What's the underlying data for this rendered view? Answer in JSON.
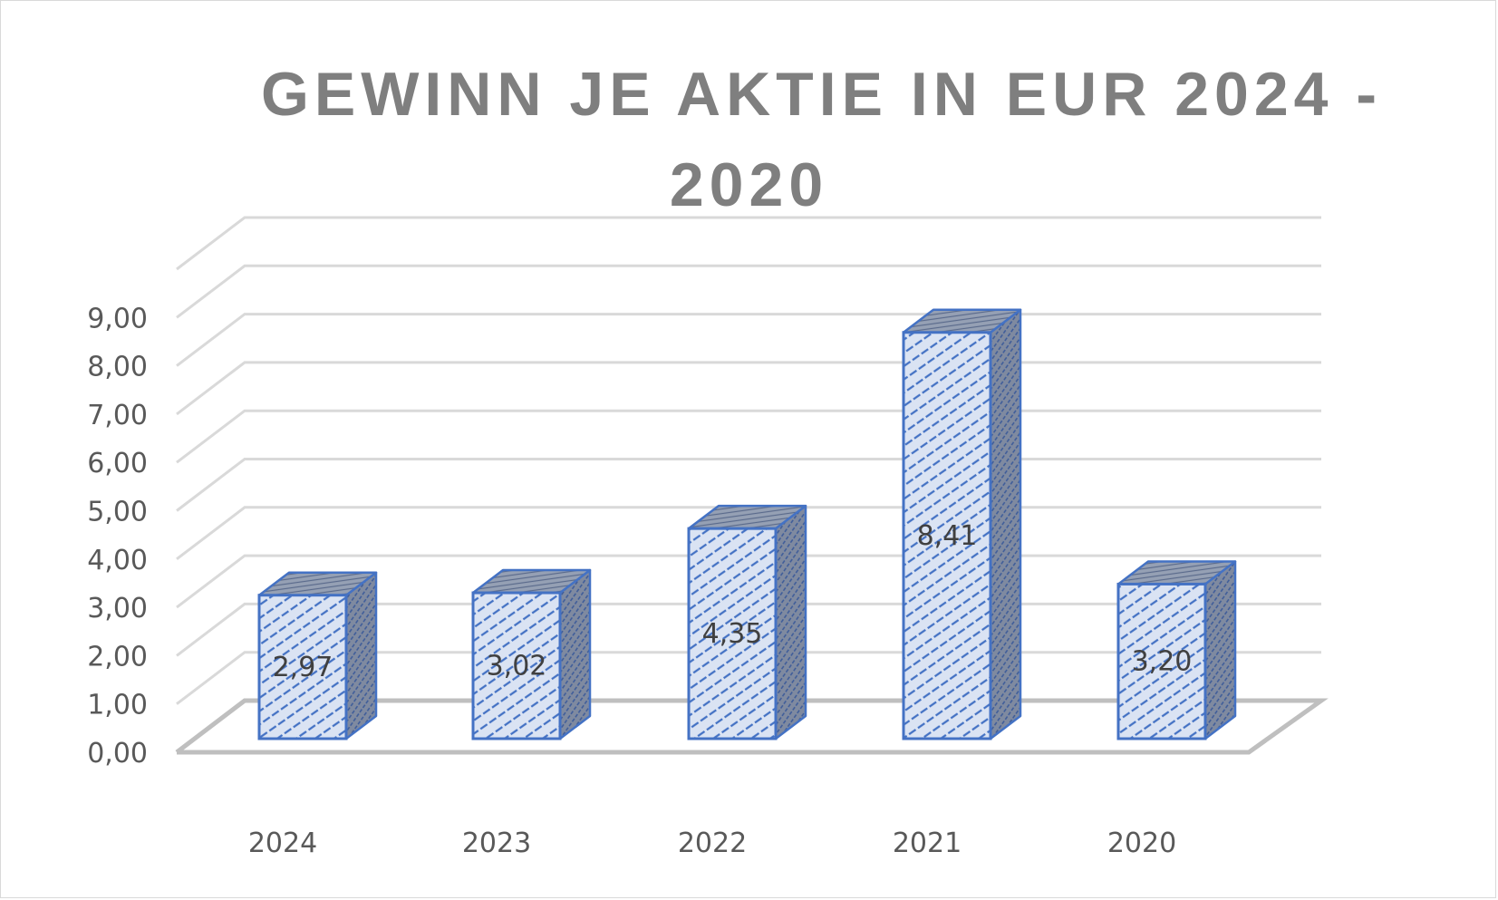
{
  "title": {
    "line1": "GEWINN JE AKTIE IN EUR 2024 -",
    "line2": "2020"
  },
  "colors": {
    "bar_front_fill": "#dae3f3",
    "bar_stripe": "#4472c4",
    "bar_border": "#4472c4",
    "bar_side": "#7f8aa0",
    "bar_top": "#8c96a8",
    "gridline": "#d9d9d9",
    "floor": "#bfbfbf",
    "title": "#7f7f7f",
    "axis_text": "#595959",
    "data_label": "#404040"
  },
  "chart_data": {
    "type": "bar",
    "style": "3d-clustered-column",
    "title": "GEWINN JE AKTIE IN EUR 2024 - 2020",
    "xlabel": "",
    "ylabel": "",
    "categories": [
      "2024",
      "2023",
      "2022",
      "2021",
      "2020"
    ],
    "values": [
      2.97,
      3.02,
      4.35,
      8.41,
      3.2
    ],
    "data_labels": [
      "2,97",
      "3,02",
      "4,35",
      "8,41",
      "3,20"
    ],
    "ylim": [
      0,
      9
    ],
    "yticks": [
      "0,00",
      "1,00",
      "2,00",
      "3,00",
      "4,00",
      "5,00",
      "6,00",
      "7,00",
      "8,00",
      "9,00"
    ],
    "grid": true,
    "legend": "none"
  }
}
